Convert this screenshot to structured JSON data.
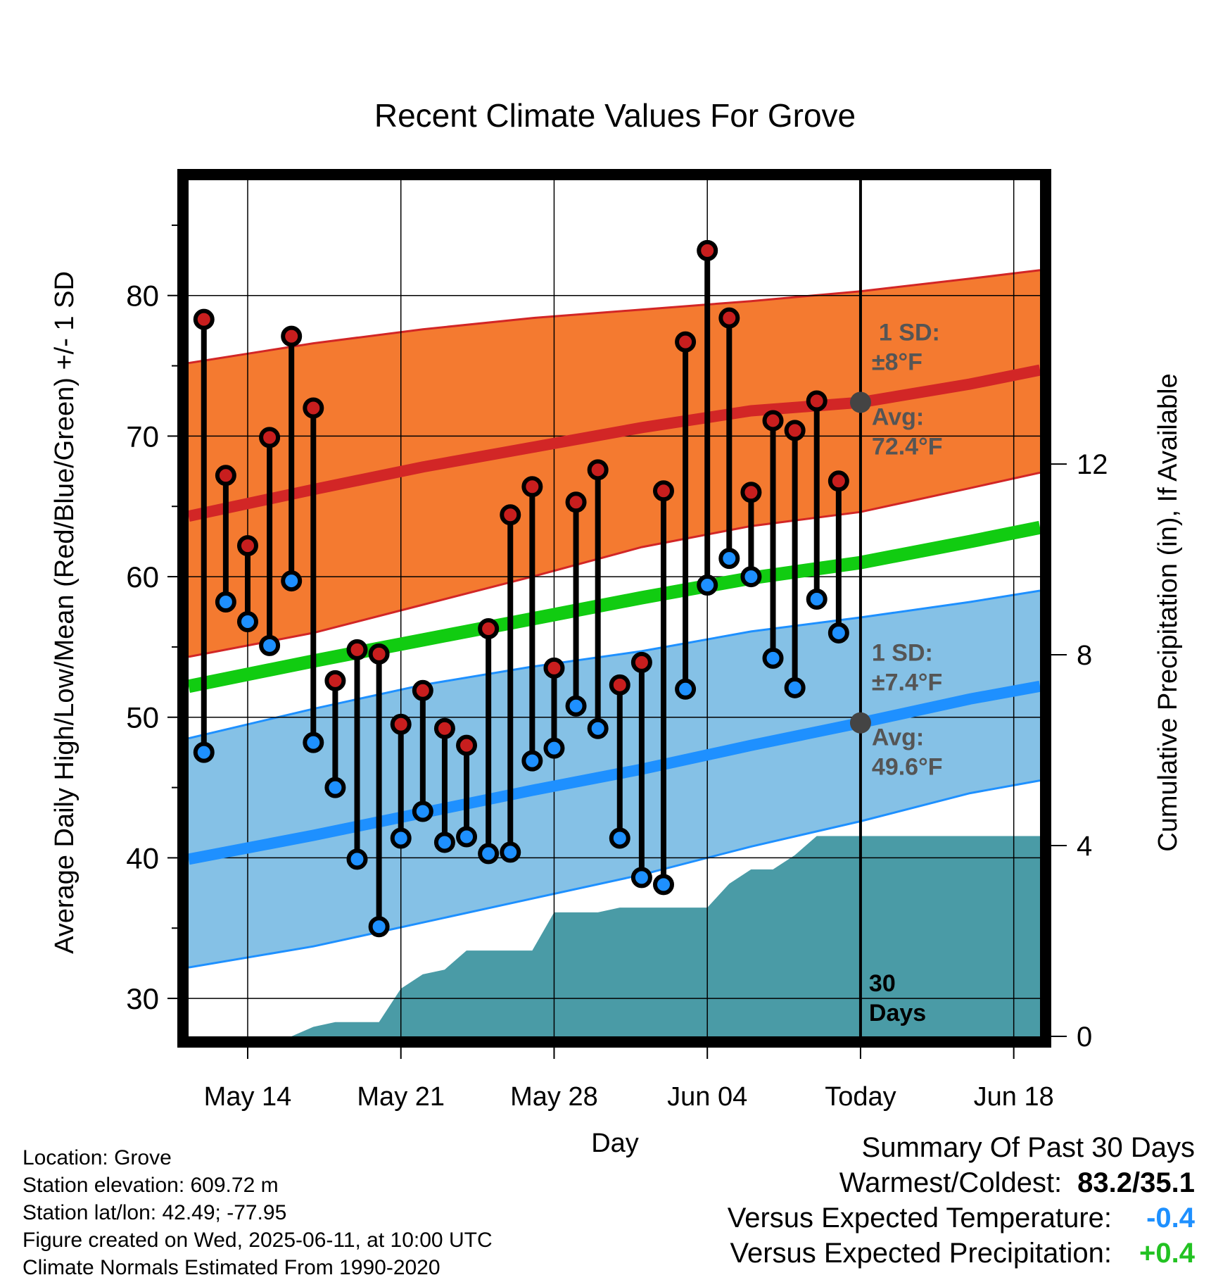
{
  "chart_data": {
    "type": "line",
    "title": "Recent Climate Values For Grove",
    "xlabel": "Day",
    "ylabel": "Average Daily High/Low/Mean (Red/Blue/Green) +/- 1 SD",
    "y2label": "Cumulative Precipitation (in), If Available",
    "ylim": [
      27.3,
      88.2
    ],
    "y2lim": [
      0,
      17.95
    ],
    "y_ticks": [
      30,
      40,
      50,
      60,
      70,
      80
    ],
    "y2_ticks": [
      0,
      4,
      8,
      12
    ],
    "x_range_days": [
      -30.7,
      8.2
    ],
    "x_ticks": [
      {
        "day": -28,
        "label": "May 14"
      },
      {
        "day": -21,
        "label": "May 21"
      },
      {
        "day": -14,
        "label": "May 28"
      },
      {
        "day": -7,
        "label": "Jun 04"
      },
      {
        "day": 0,
        "label": "Today"
      },
      {
        "day": 7,
        "label": "Jun 18"
      }
    ],
    "today_day": 0,
    "today_label": [
      "30",
      "Days"
    ],
    "grid": true,
    "normals": {
      "x_days": [
        -30.7,
        -25,
        -20,
        -15,
        -10,
        -5,
        0,
        5,
        8.2
      ],
      "high_mean": [
        64.3,
        66.2,
        67.8,
        69.2,
        70.6,
        71.8,
        72.4,
        73.7,
        74.7
      ],
      "high_upper": [
        75.2,
        76.6,
        77.6,
        78.4,
        79.0,
        79.6,
        80.3,
        81.2,
        81.8
      ],
      "high_lower": [
        54.3,
        56.0,
        58.0,
        60.0,
        62.1,
        63.6,
        64.6,
        66.3,
        67.4
      ],
      "mean": [
        52.2,
        54.0,
        55.5,
        57.0,
        58.5,
        59.9,
        61.0,
        62.5,
        63.5
      ],
      "low_mean": [
        39.9,
        41.6,
        43.2,
        44.8,
        46.3,
        48.0,
        49.6,
        51.3,
        52.2
      ],
      "low_upper": [
        48.5,
        50.6,
        52.3,
        53.6,
        54.7,
        56.1,
        57.1,
        58.2,
        59.0
      ],
      "low_lower": [
        32.2,
        33.7,
        35.4,
        37.1,
        38.8,
        40.8,
        42.6,
        44.6,
        45.5
      ]
    },
    "normal_labels": {
      "high": {
        "sd_title": "1 SD:",
        "sd_value": "±8°F",
        "avg_title": "Avg:",
        "avg_value": "72.4°F",
        "avg": 72.4
      },
      "low": {
        "sd_title": "1 SD:",
        "sd_value": "±7.4°F",
        "avg_title": "Avg:",
        "avg_value": "49.6°F",
        "avg": 49.6
      }
    },
    "series": [
      {
        "name": "High",
        "x": [
          -30,
          -29,
          -28,
          -27,
          -26,
          -25,
          -24,
          -23,
          -22,
          -21,
          -20,
          -19,
          -18,
          -17,
          -16,
          -15,
          -14,
          -13,
          -12,
          -11,
          -10,
          -9,
          -8,
          -7,
          -6,
          -5,
          -4,
          -3,
          -2,
          -1
        ],
        "values": [
          78.3,
          67.2,
          62.2,
          69.9,
          77.1,
          72.0,
          52.6,
          54.8,
          54.5,
          49.5,
          51.9,
          49.2,
          48.0,
          56.3,
          64.4,
          66.4,
          53.5,
          65.3,
          67.6,
          52.3,
          53.9,
          66.1,
          76.7,
          83.2,
          78.4,
          66.0,
          71.1,
          70.4,
          72.5,
          66.8
        ]
      },
      {
        "name": "Low",
        "x": [
          -30,
          -29,
          -28,
          -27,
          -26,
          -25,
          -24,
          -23,
          -22,
          -21,
          -20,
          -19,
          -18,
          -17,
          -16,
          -15,
          -14,
          -13,
          -12,
          -11,
          -10,
          -9,
          -8,
          -7,
          -6,
          -5,
          -4,
          -3,
          -2,
          -1
        ],
        "values": [
          47.5,
          58.2,
          56.8,
          55.1,
          59.7,
          48.2,
          45.0,
          39.9,
          35.1,
          41.4,
          43.3,
          41.1,
          41.5,
          40.3,
          40.4,
          46.9,
          47.8,
          50.8,
          49.2,
          41.4,
          38.6,
          38.1,
          52.0,
          59.4,
          61.3,
          60.0,
          54.2,
          52.1,
          58.4,
          56.0
        ]
      }
    ],
    "precip": {
      "x": [
        -30.7,
        -26,
        -25,
        -24,
        -23,
        -22,
        -21,
        -20,
        -19,
        -18,
        -17,
        -16,
        -15,
        -14,
        -13,
        -12,
        -11,
        -10,
        -9,
        -8,
        -7,
        -6,
        -5,
        -4,
        -3,
        -2,
        8.2
      ],
      "values": [
        0,
        0,
        0.2,
        0.3,
        0.3,
        0.3,
        1.0,
        1.3,
        1.4,
        1.8,
        1.8,
        1.8,
        1.8,
        2.6,
        2.6,
        2.6,
        2.7,
        2.7,
        2.7,
        2.7,
        2.7,
        3.2,
        3.5,
        3.5,
        3.8,
        4.2,
        4.2
      ]
    }
  },
  "info": [
    "Location: Grove",
    "Station elevation: 609.72 m",
    "Station lat/lon: 42.49; -77.95",
    "Figure created on Wed, 2025-06-11, at 10:00 UTC",
    "Climate Normals Estimated From 1990-2020"
  ],
  "summary": {
    "title": "Summary Of Past 30 Days",
    "rows": [
      {
        "label": "Warmest/Coldest:",
        "value": "83.2/35.1",
        "color": "#000000"
      },
      {
        "label": "Versus Expected Temperature:",
        "value": "-0.4",
        "color": "#1e90ff"
      },
      {
        "label": "Versus Expected Precipitation:",
        "value": "+0.4",
        "color": "#22c222"
      }
    ]
  },
  "colors": {
    "high_band": "#f47a30",
    "high_line": "#d22626",
    "low_band": "#85c1e6",
    "low_line": "#1e90ff",
    "mean_line": "#11cc11",
    "precip": "#4a9ba6",
    "high_dot": "#c81e1e",
    "low_dot": "#1e90ff",
    "label_gray": "#555555"
  }
}
